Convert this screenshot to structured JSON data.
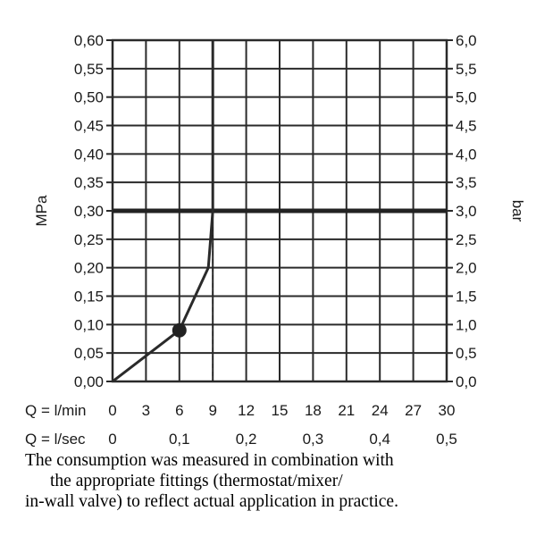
{
  "chart_data": {
    "type": "line",
    "title": "",
    "y_left": {
      "label": "MPa",
      "ticks": [
        "0,00",
        "0,05",
        "0,10",
        "0,15",
        "0,20",
        "0,25",
        "0,30",
        "0,35",
        "0,40",
        "0,45",
        "0,50",
        "0,55",
        "0,60"
      ],
      "range": [
        0,
        0.6
      ]
    },
    "y_right": {
      "label": "bar",
      "ticks": [
        "0,0",
        "0,5",
        "1,0",
        "1,5",
        "2,0",
        "2,5",
        "3,0",
        "3,5",
        "4,0",
        "4,5",
        "5,0",
        "5,5",
        "6,0"
      ],
      "range": [
        0,
        6
      ]
    },
    "x_lmin": {
      "label": "Q = l/min",
      "ticks": [
        "0",
        "3",
        "6",
        "9",
        "12",
        "15",
        "18",
        "21",
        "24",
        "27",
        "30"
      ],
      "range": [
        0,
        30
      ]
    },
    "x_lsec": {
      "label": "Q = l/sec",
      "ticks": [
        {
          "value": 0,
          "label": "0"
        },
        {
          "value": 0.1,
          "label": "0,1"
        },
        {
          "value": 0.2,
          "label": "0,2"
        },
        {
          "value": 0.3,
          "label": "0,3"
        },
        {
          "value": 0.4,
          "label": "0,4"
        },
        {
          "value": 0.5,
          "label": "0,5"
        }
      ]
    },
    "series": [
      {
        "x": [
          0,
          6,
          8.6,
          9.0,
          9.0,
          9.0
        ],
        "y": [
          0,
          0.09,
          0.2,
          0.3,
          0.5,
          0.6
        ]
      }
    ],
    "marker": {
      "x": 6,
      "y": 0.09
    },
    "reference_line_y": 0.3,
    "reference_drop_x": 9,
    "grid": true,
    "colors": {
      "line": "#2a2a2a",
      "grid": "#2a2a2a"
    }
  },
  "caption": {
    "line1": "The consumption was measured in combination with",
    "line2": "the appropriate fittings (thermostat/mixer/",
    "line3": "in-wall valve) to reflect actual application in practice."
  }
}
